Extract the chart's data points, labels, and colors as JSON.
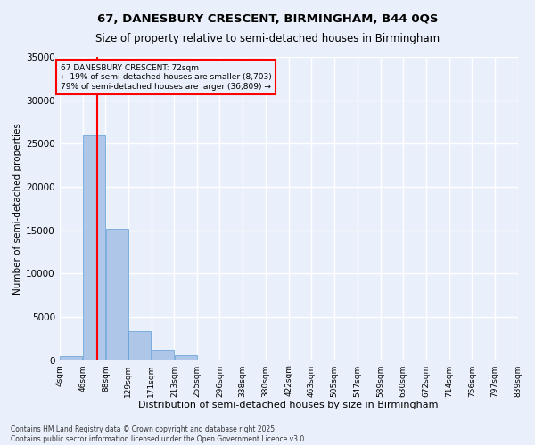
{
  "title1": "67, DANESBURY CRESCENT, BIRMINGHAM, B44 0QS",
  "title2": "Size of property relative to semi-detached houses in Birmingham",
  "xlabel": "Distribution of semi-detached houses by size in Birmingham",
  "ylabel": "Number of semi-detached properties",
  "bin_labels": [
    "4sqm",
    "46sqm",
    "88sqm",
    "129sqm",
    "171sqm",
    "213sqm",
    "255sqm",
    "296sqm",
    "338sqm",
    "380sqm",
    "422sqm",
    "463sqm",
    "505sqm",
    "547sqm",
    "589sqm",
    "630sqm",
    "672sqm",
    "714sqm",
    "756sqm",
    "797sqm",
    "839sqm"
  ],
  "bin_edges": [
    4,
    46,
    88,
    129,
    171,
    213,
    255,
    296,
    338,
    380,
    422,
    463,
    505,
    547,
    589,
    630,
    672,
    714,
    756,
    797,
    839
  ],
  "bar_heights": [
    500,
    26000,
    15200,
    3400,
    1200,
    600,
    0,
    0,
    0,
    0,
    0,
    0,
    0,
    0,
    0,
    0,
    0,
    0,
    0,
    0
  ],
  "bar_color": "#aec6e8",
  "bar_edgecolor": "#5b9bd5",
  "property_value": 72,
  "annotation_title": "67 DANESBURY CRESCENT: 72sqm",
  "annotation_line1": "← 19% of semi-detached houses are smaller (8,703)",
  "annotation_line2": "79% of semi-detached houses are larger (36,809) →",
  "ylim": [
    0,
    35000
  ],
  "yticks": [
    0,
    5000,
    10000,
    15000,
    20000,
    25000,
    30000,
    35000
  ],
  "background_color": "#eaf0fb",
  "grid_color": "#ffffff",
  "footer1": "Contains HM Land Registry data © Crown copyright and database right 2025.",
  "footer2": "Contains public sector information licensed under the Open Government Licence v3.0."
}
